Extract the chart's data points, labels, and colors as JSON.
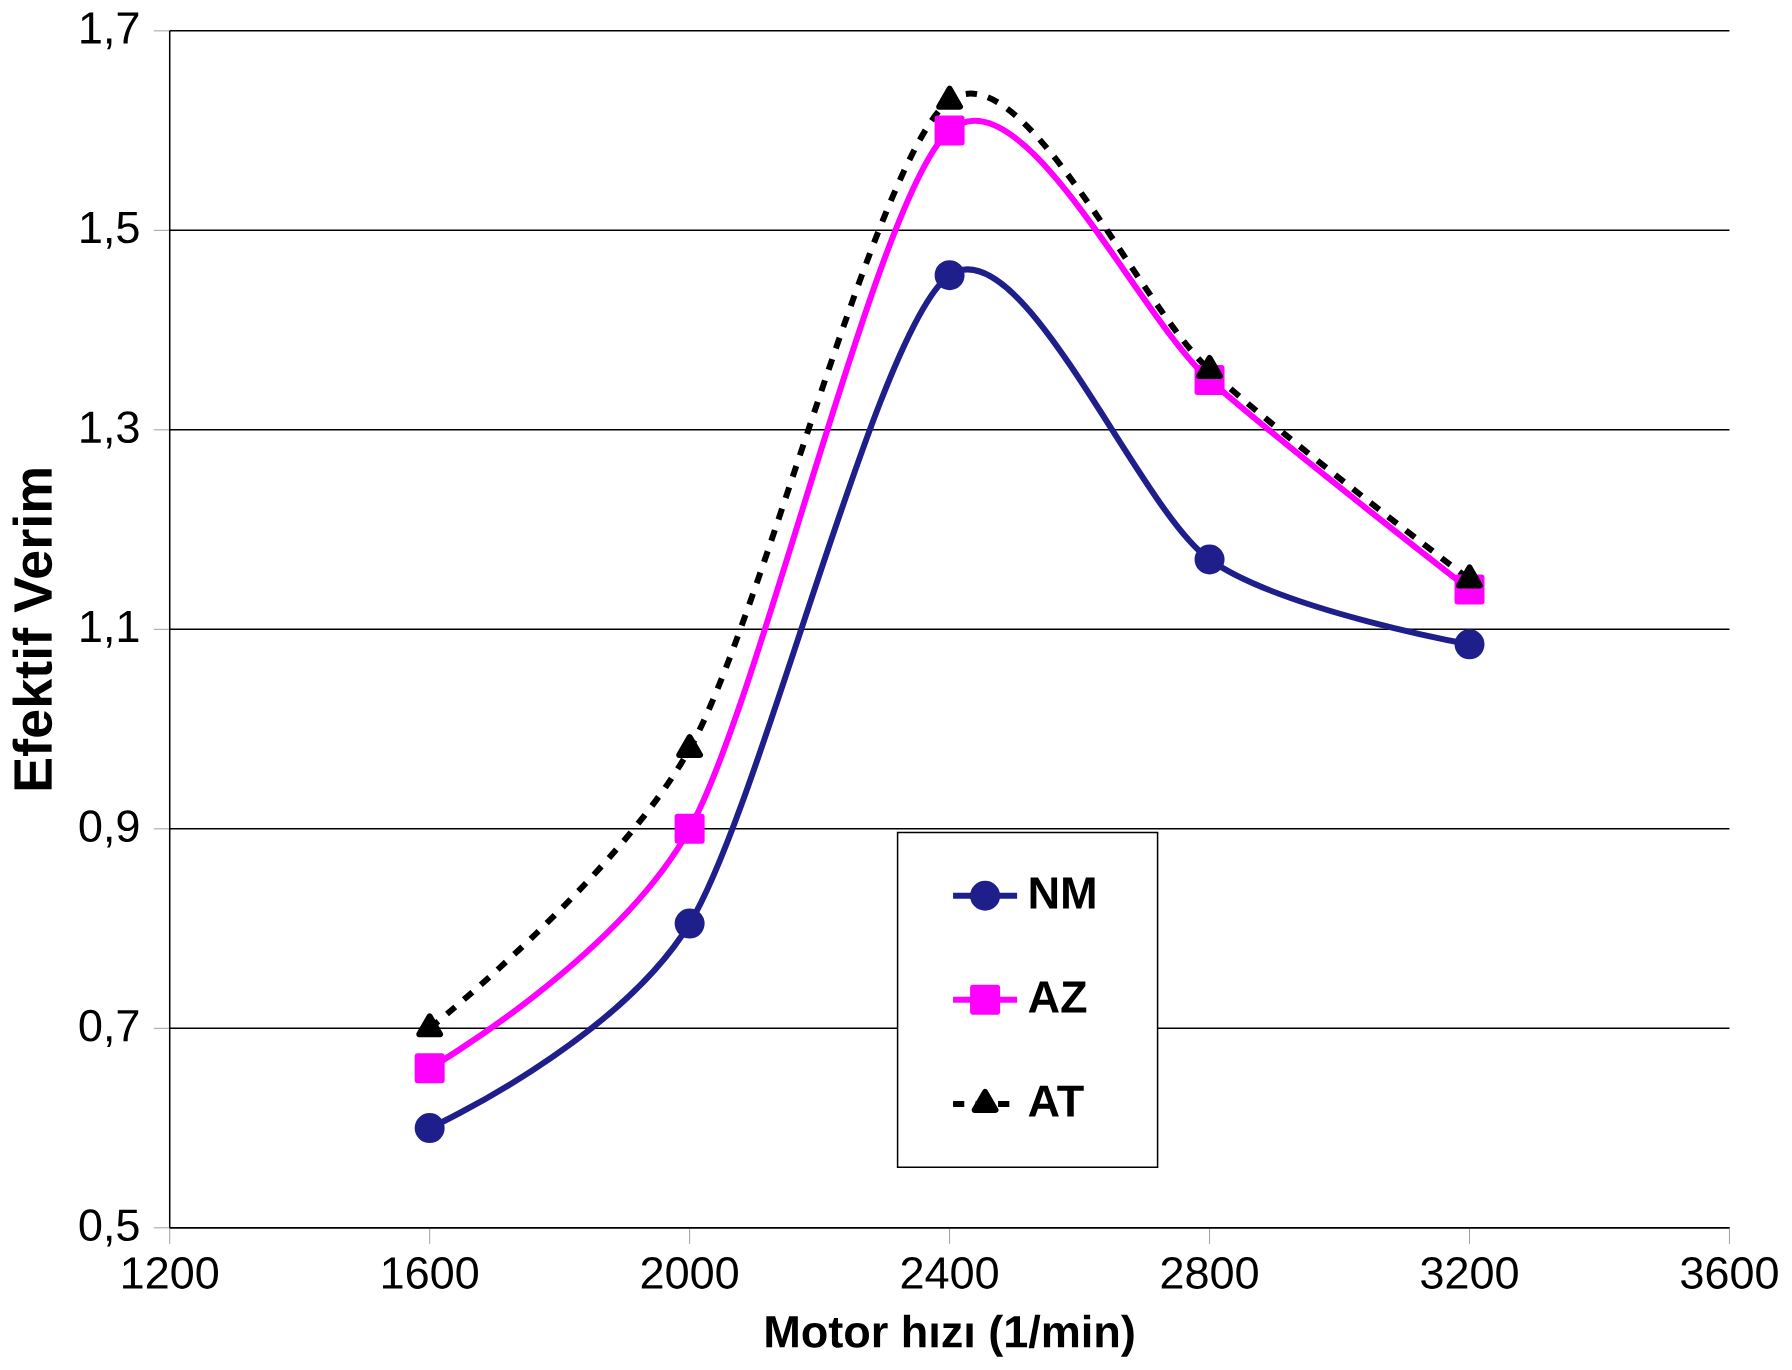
{
  "chart_data": {
    "type": "line",
    "xlabel": "Motor hızı (1/min)",
    "ylabel": "Efektif Verim",
    "x": [
      1600,
      2000,
      2400,
      2800,
      3200
    ],
    "series": [
      {
        "name": "NM",
        "color": "#1f1f8c",
        "values": [
          0.6,
          0.805,
          1.455,
          1.17,
          1.085
        ],
        "marker": "circle",
        "line_style": "solid"
      },
      {
        "name": "AZ",
        "color": "#ff00ff",
        "values": [
          0.66,
          0.9,
          1.6,
          1.35,
          1.14
        ],
        "marker": "square",
        "line_style": "solid"
      },
      {
        "name": "AT",
        "color": "#000000",
        "values": [
          0.7,
          0.98,
          1.63,
          1.36,
          1.15
        ],
        "marker": "triangle",
        "line_style": "dashed"
      }
    ],
    "xlim": [
      1200,
      3600
    ],
    "xticks": [
      1200,
      1600,
      2000,
      2400,
      2800,
      3200,
      3600
    ],
    "ylim": [
      0.5,
      1.7
    ],
    "yticks": [
      {
        "value": 0.5,
        "label": "0,5"
      },
      {
        "value": 0.7,
        "label": "0,7"
      },
      {
        "value": 0.9,
        "label": "0,9"
      },
      {
        "value": 1.1,
        "label": "1,1"
      },
      {
        "value": 1.3,
        "label": "1,3"
      },
      {
        "value": 1.5,
        "label": "1,5"
      },
      {
        "value": 1.7,
        "label": "1,7"
      }
    ],
    "grid": "y",
    "legend": "bottom"
  }
}
